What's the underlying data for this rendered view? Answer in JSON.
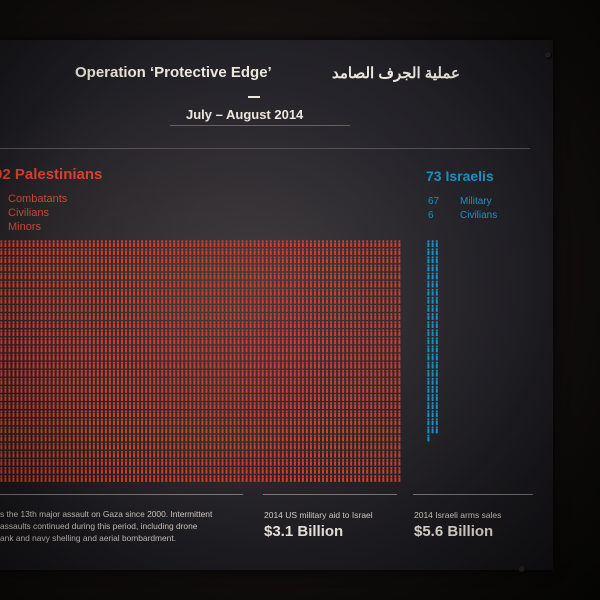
{
  "panel": {
    "title_en": "Operation ‘Protective Edge’",
    "title_ar": "عملية الجرف الصامد",
    "dates": "July – August 2014",
    "palestinians": {
      "heading": "02 Palestinians",
      "categories": [
        "Combatants",
        "Civilians",
        "Minors"
      ],
      "color": "#d13c2b"
    },
    "israelis": {
      "heading": "73 Israelis",
      "count": 73,
      "breakdown": [
        {
          "value": "67",
          "label": "Military"
        },
        {
          "value": "6",
          "label": "Civilians"
        }
      ],
      "color": "#1b8fc4"
    },
    "footer": {
      "note_lines": [
        "s the 13th major assault on Gaza since 2000. Intermittent",
        "assaults continued during this period, including drone",
        "ank and navy shelling and aerial bombardment."
      ],
      "aid_label": "2014 US military aid to Israel",
      "aid_value": "$3.1 Billion",
      "arms_label": "2014 Israeli arms sales",
      "arms_value": "$5.6 Billion"
    }
  }
}
